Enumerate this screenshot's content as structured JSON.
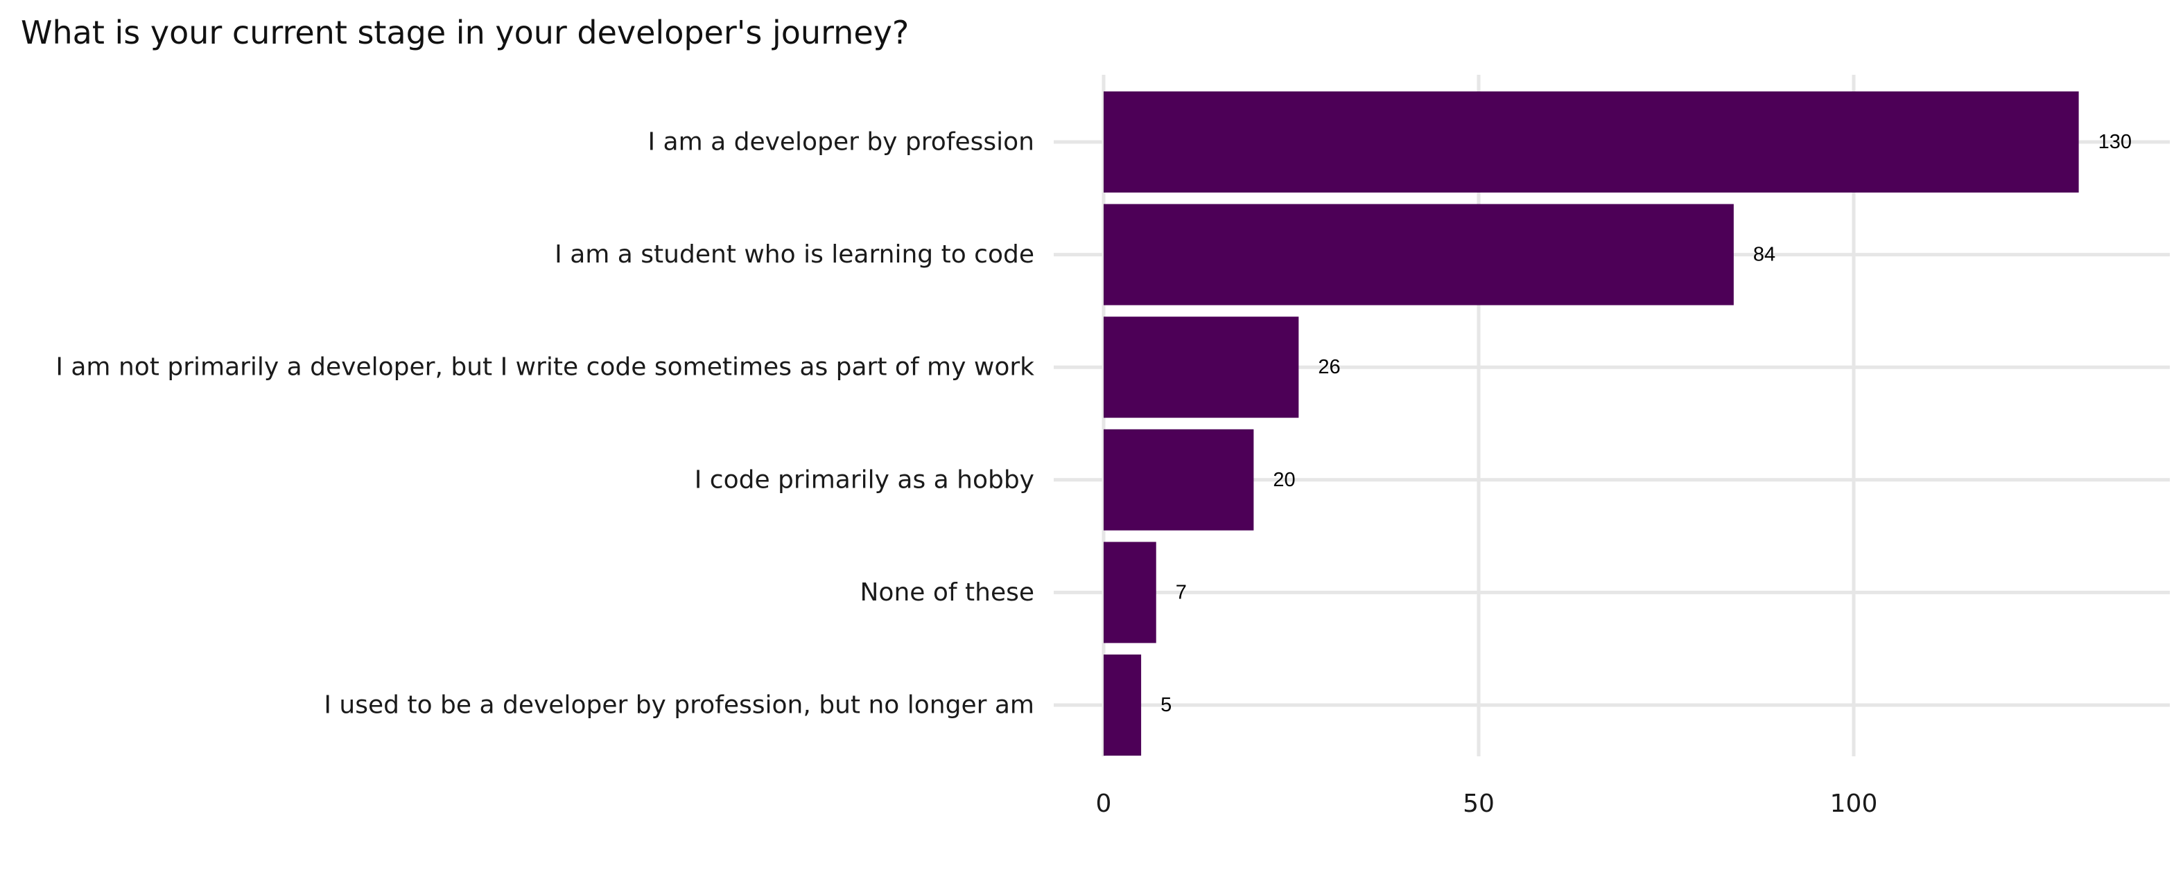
{
  "chart_data": {
    "type": "bar",
    "orientation": "horizontal",
    "title": "What is your current stage in your developer's journey?",
    "xlabel": "",
    "ylabel": "",
    "categories": [
      "I am a developer by profession",
      "I am a student who is learning to code",
      "I am not primarily a developer, but I write code sometimes as part of my work",
      "I code primarily as a hobby",
      "None of these",
      "I used to be a developer by profession, but no longer am"
    ],
    "values": [
      130,
      84,
      26,
      20,
      7,
      5
    ],
    "xlim": [
      0,
      140
    ],
    "xticks": [
      0,
      50,
      100
    ],
    "xtick_labels": [
      "0",
      "50",
      "100"
    ],
    "data_labels": [
      "130",
      "84",
      "26",
      "20",
      "7",
      "5"
    ],
    "bar_color": "#4d0057",
    "grid": true,
    "legend": "none"
  }
}
